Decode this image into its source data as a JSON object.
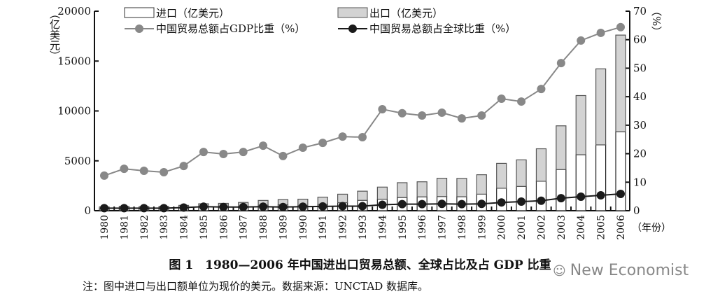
{
  "chart_data": {
    "type": "bar",
    "stacked": true,
    "categories": [
      "1980",
      "1981",
      "1982",
      "1983",
      "1984",
      "1985",
      "1986",
      "1987",
      "1988",
      "1989",
      "1990",
      "1991",
      "1992",
      "1993",
      "1994",
      "1995",
      "1996",
      "1997",
      "1998",
      "1999",
      "2000",
      "2001",
      "2002",
      "2003",
      "2004",
      "2005",
      "2006"
    ],
    "series": [
      {
        "name": "进口（亿美元）",
        "kind": "bar",
        "axis": "left",
        "color": "#ffffff",
        "values": [
          200,
          220,
          193,
          214,
          274,
          423,
          429,
          432,
          553,
          591,
          534,
          638,
          806,
          1040,
          1156,
          1321,
          1388,
          1424,
          1402,
          1657,
          2251,
          2436,
          2952,
          4128,
          5612,
          6600,
          7916
        ]
      },
      {
        "name": "出口（亿美元）",
        "kind": "bar",
        "axis": "left",
        "color": "#d3d3d3",
        "values": [
          181,
          220,
          223,
          222,
          261,
          274,
          309,
          394,
          475,
          525,
          621,
          719,
          849,
          917,
          1210,
          1488,
          1511,
          1828,
          1837,
          1949,
          2492,
          2661,
          3256,
          4382,
          5933,
          7620,
          9689
        ]
      },
      {
        "name": "中国贸易总额占GDP比重（%）",
        "kind": "line",
        "axis": "right",
        "color": "#888888",
        "values": [
          12.3,
          14.7,
          14.0,
          13.5,
          15.7,
          20.6,
          19.9,
          20.6,
          22.8,
          19.2,
          22.1,
          23.8,
          26.0,
          25.8,
          35.6,
          34.2,
          33.4,
          34.4,
          32.4,
          33.4,
          39.3,
          38.3,
          42.7,
          51.8,
          59.7,
          62.4,
          64.4
        ]
      },
      {
        "name": "中国贸易总额占全球比重（%）",
        "kind": "line",
        "axis": "right",
        "color": "#1a1a1a",
        "values": [
          0.9,
          0.9,
          0.9,
          0.9,
          1.1,
          1.4,
          1.3,
          1.3,
          1.4,
          1.3,
          1.4,
          1.5,
          1.6,
          1.6,
          2.1,
          2.3,
          2.3,
          2.4,
          2.3,
          2.4,
          2.9,
          3.2,
          3.5,
          4.4,
          4.9,
          5.4,
          5.9
        ]
      }
    ],
    "ylabel": "（亿美元）",
    "y2label": "（%）",
    "xlabel": "（年份）",
    "ylim": [
      0,
      20000
    ],
    "y2lim": [
      0,
      70
    ],
    "yticks": [
      "0",
      "5000",
      "10000",
      "15000",
      "20000"
    ],
    "y2ticks": [
      "0",
      "10",
      "20",
      "30",
      "40",
      "50",
      "60",
      "70"
    ],
    "legend_placement": "top",
    "grid": false
  },
  "caption": {
    "title": "图 1　1980—2006 年中国进出口贸易总额、全球占比及占 GDP 比重",
    "note": "注：图中进口与出口额单位为现价的美元。数据来源：UNCTAD 数据库。"
  },
  "watermark": {
    "text": "New Economist",
    "icon": "wechat-icon"
  }
}
